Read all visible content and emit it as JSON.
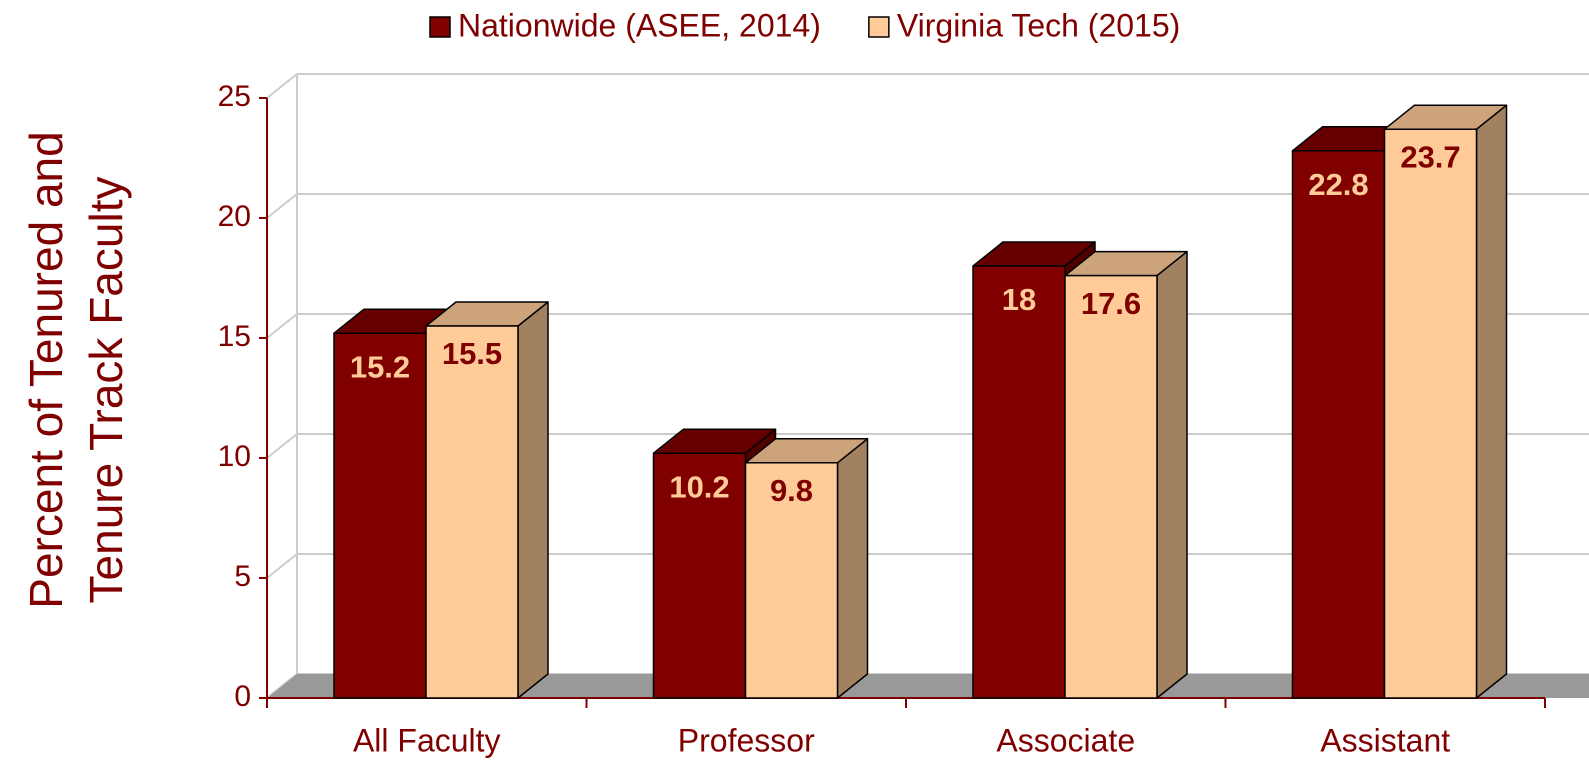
{
  "chart_data": {
    "type": "bar3d",
    "y_axis_label": [
      "Percent of Tenured and",
      "Tenure Track Faculty"
    ],
    "categories": [
      "All Faculty",
      "Professor",
      "Associate",
      "Assistant"
    ],
    "series": [
      {
        "name": "Nationwide (ASEE, 2014)",
        "color": "#800000",
        "label_color": "#ffcc99",
        "values": [
          15.2,
          10.2,
          18,
          22.8
        ]
      },
      {
        "name": "Virginia Tech (2015)",
        "color": "#ffcc99",
        "label_color": "#800000",
        "values": [
          15.5,
          9.8,
          17.6,
          23.7
        ]
      }
    ],
    "ylim": [
      0,
      25
    ],
    "yticks": [
      0,
      5,
      10,
      15,
      20,
      25
    ],
    "grid": true,
    "legend": "top"
  }
}
